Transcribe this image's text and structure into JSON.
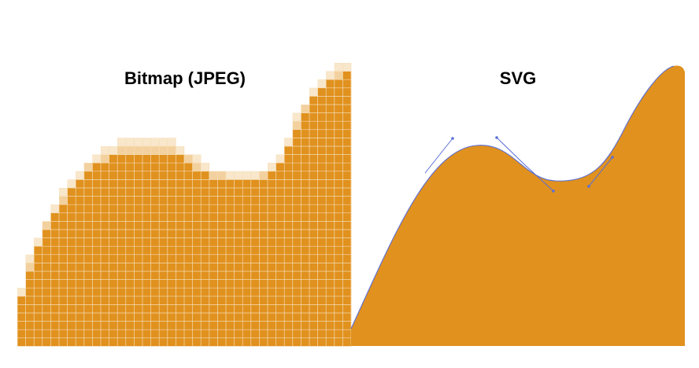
{
  "panels": {
    "left": {
      "title": "Bitmap (JPEG)"
    },
    "right": {
      "title": "SVG"
    }
  },
  "colors": {
    "fill": "#E0911E",
    "pixel_grid": "#F6DDB5",
    "edge_light": "#F3D19F",
    "edge_faint": "#F8E7CB",
    "bezier_handle": "#5B6FD6",
    "background": "#FFFFFF"
  }
}
